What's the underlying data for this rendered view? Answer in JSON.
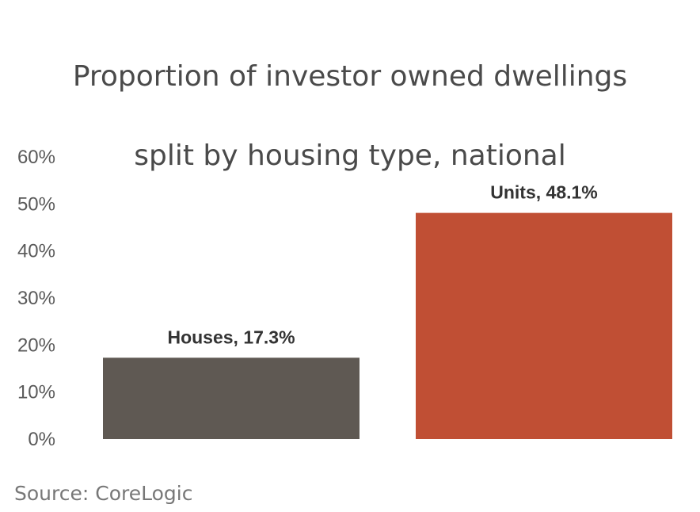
{
  "chart_data": {
    "type": "bar",
    "title_lines": [
      "Proportion of investor owned dwellings",
      "split by housing type, national"
    ],
    "categories": [
      "Houses",
      "Units"
    ],
    "values": [
      17.3,
      48.1
    ],
    "data_labels": [
      "Houses, 17.3%",
      "Units, 48.1%"
    ],
    "colors": [
      "#5f5953",
      "#c04f34"
    ],
    "ylim": [
      0,
      60
    ],
    "yticks": [
      0,
      10,
      20,
      30,
      40,
      50,
      60
    ],
    "ytick_labels": [
      "0%",
      "10%",
      "20%",
      "30%",
      "40%",
      "50%",
      "60%"
    ],
    "xlabel": "",
    "ylabel": "",
    "grid": false,
    "legend": "none"
  },
  "source": "Source: CoreLogic"
}
